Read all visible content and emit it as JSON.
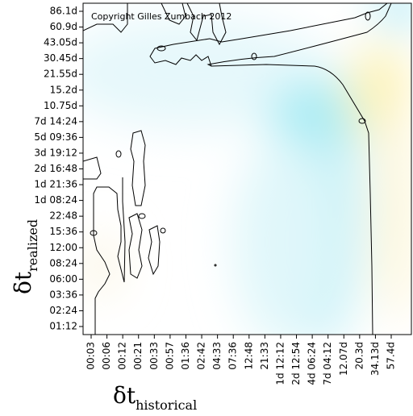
{
  "chart_data": {
    "type": "heatmap",
    "x_label": "δt",
    "x_label_sub": "historical",
    "y_label": "δt",
    "y_label_sub": "realized",
    "annotation": "Copyright Gilles Zumbach 2012",
    "x_categories": [
      "00:03",
      "00:06",
      "00:12",
      "00:21",
      "00:33",
      "00:57",
      "01:36",
      "02:42",
      "04:33",
      "07:36",
      "12:48",
      "21:33",
      "1d 12:12",
      "2d 12:54",
      "4d 06:24",
      "7d 04:12",
      "12.07d",
      "20.3d",
      "34.13d",
      "57.4d"
    ],
    "y_categories": [
      "01:12",
      "02:24",
      "03:36",
      "06:00",
      "08:24",
      "12:00",
      "15:36",
      "22:48",
      "1d 08:24",
      "1d 21:36",
      "2d 16:48",
      "3d 19:12",
      "5d 09:36",
      "7d 14:24",
      "10.75d",
      "15.2d",
      "21.55d",
      "30.45d",
      "43.05d",
      "60.9d",
      "86.1d"
    ]
  }
}
